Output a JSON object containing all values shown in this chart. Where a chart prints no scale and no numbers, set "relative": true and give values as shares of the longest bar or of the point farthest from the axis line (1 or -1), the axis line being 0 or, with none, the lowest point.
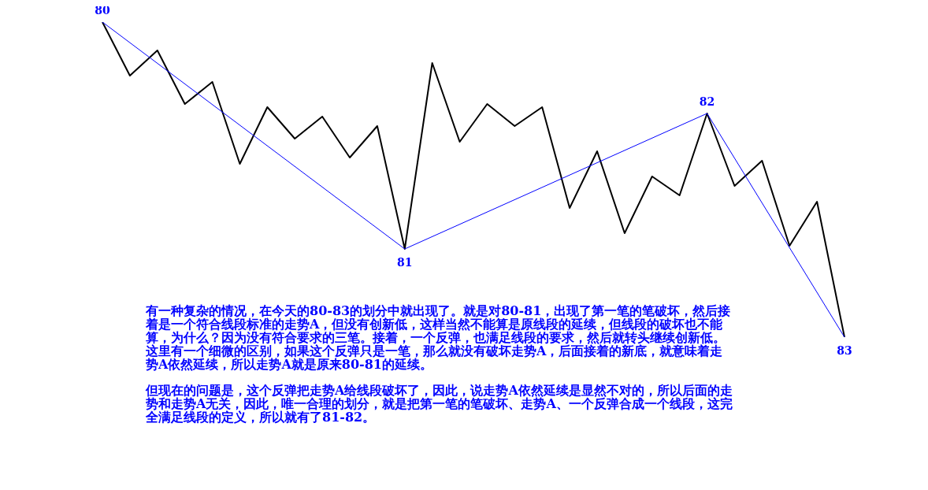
{
  "chart_data": {
    "type": "line",
    "relative": true,
    "categories": [
      null,
      null,
      null,
      null,
      null,
      null,
      null,
      null,
      null,
      null,
      null,
      null,
      null,
      null,
      null,
      null,
      null,
      null,
      null,
      null,
      null,
      null,
      null,
      null,
      null,
      null,
      null,
      null
    ],
    "series": [
      {
        "color": "#000000",
        "values": [
          1,
          0.83,
          0.91,
          0.74,
          0.81,
          0.55,
          0.73,
          0.63,
          0.7,
          0.57,
          0.67,
          0.28,
          0.87,
          0.62,
          0.74,
          0.67,
          0.73,
          0.41,
          0.59,
          0.33,
          0.51,
          0.45,
          0.71,
          0.48,
          0.56,
          0.29,
          0.43,
          0
        ]
      },
      {
        "color": "#0000ff",
        "values": [
          1,
          null,
          null,
          null,
          null,
          null,
          null,
          null,
          null,
          null,
          null,
          0.28,
          null,
          null,
          null,
          null,
          null,
          null,
          null,
          null,
          null,
          null,
          0.71,
          null,
          null,
          null,
          null,
          0
        ]
      }
    ],
    "annotations": [
      {
        "text": "80",
        "y": 1
      },
      {
        "text": "81",
        "y": 0.28
      },
      {
        "text": "82",
        "y": 0.71
      },
      {
        "text": "83",
        "y": 0
      },
      "有一种复杂的情况，在今天的80-83的划分中就出现了。就是对80-81，出现了第一笔的笔破坏，然后接着是一个符合线段标准的走势A，但没有创新低，这样当然不能算是原线段的延续，但线段的破坏也不能算，为什么？因为没有符合要求的三笔。接着，一个反弹，也满足线段的要求，然后就转头继续创新低。这里有一个细微的区别，如果这个反弹只是一笔，那么就没有破坏走势A，后面接着的新底，就意味着走势A依然延续，所以走势A就是原来80-81的延续。",
      "但现在的问题是，这个反弹把走势A给线段破坏了，因此，说走势A依然延续是显然不对的，所以后面的走势和走势A无关，因此，唯一合理的划分，就是把第一笔的笔破坏、走势A、一个反弹合成一个线段，这完全满足线段的定义，所以就有了81-82。"
    ],
    "marker": "none",
    "grid": false,
    "legend": false
  }
}
